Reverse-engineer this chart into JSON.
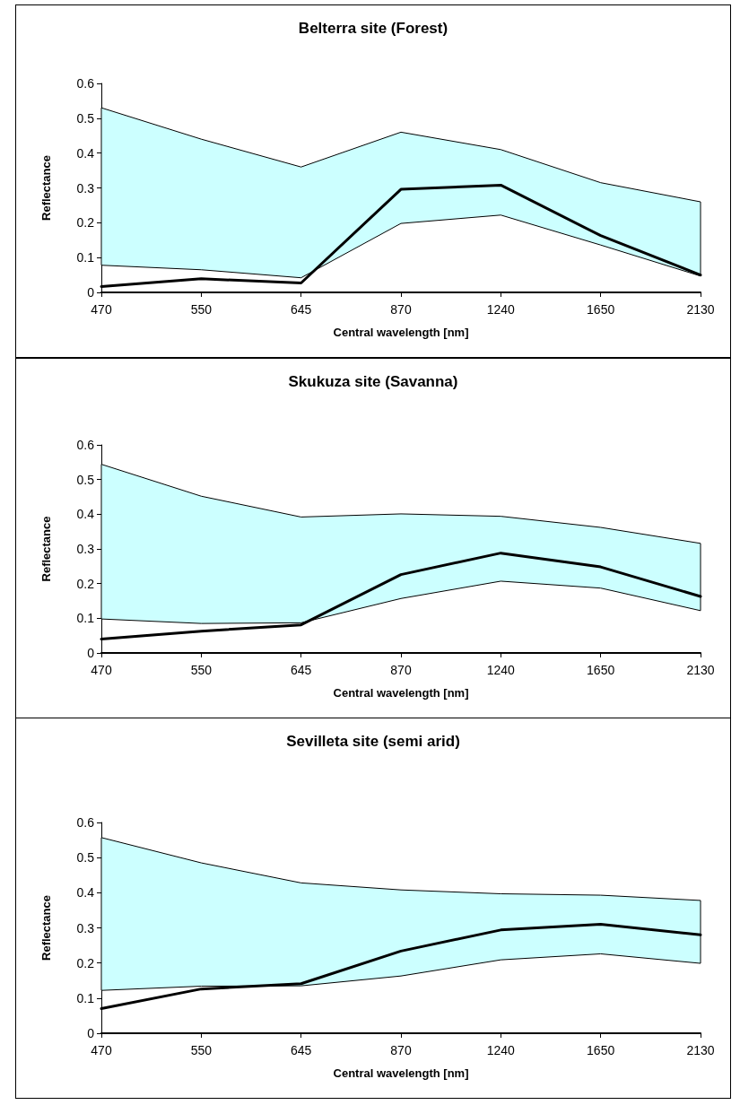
{
  "chart_data": [
    {
      "type": "line",
      "title": "Belterra site (Forest)",
      "xlabel": "Central wavelength [nm]",
      "ylabel": "Reflectance",
      "categories": [
        "470",
        "550",
        "645",
        "870",
        "1240",
        "1650",
        "2130"
      ],
      "ylim": [
        0,
        0.6
      ],
      "yticks": [
        0,
        0.1,
        0.2,
        0.3,
        0.4,
        0.5,
        0.6
      ],
      "marker": "none",
      "series": [
        {
          "color": "#000000",
          "values": [
            0.017,
            0.039,
            0.027,
            0.296,
            0.308,
            0.163,
            0.05
          ],
          "lower": [
            0.078,
            0.065,
            0.042,
            0.198,
            0.222,
            0.136,
            0.047
          ],
          "upper": [
            0.53,
            0.44,
            0.36,
            0.46,
            0.41,
            0.315,
            0.26
          ]
        }
      ]
    },
    {
      "type": "line",
      "title": "Skukuza site (Savanna)",
      "xlabel": "Central wavelength [nm]",
      "ylabel": "Reflectance",
      "categories": [
        "470",
        "550",
        "645",
        "870",
        "1240",
        "1650",
        "2130"
      ],
      "ylim": [
        0,
        0.6
      ],
      "yticks": [
        0,
        0.1,
        0.2,
        0.3,
        0.4,
        0.5,
        0.6
      ],
      "marker": "none",
      "series": [
        {
          "color": "#000000",
          "values": [
            0.04,
            0.063,
            0.081,
            0.226,
            0.288,
            0.248,
            0.163
          ],
          "lower": [
            0.098,
            0.085,
            0.087,
            0.157,
            0.207,
            0.187,
            0.122
          ],
          "upper": [
            0.544,
            0.452,
            0.392,
            0.401,
            0.394,
            0.362,
            0.316
          ]
        }
      ]
    },
    {
      "type": "line",
      "title": "Sevilleta site (semi arid)",
      "xlabel": "Central wavelength [nm]",
      "ylabel": "Reflectance",
      "categories": [
        "470",
        "550",
        "645",
        "870",
        "1240",
        "1650",
        "2130"
      ],
      "ylim": [
        0,
        0.6
      ],
      "yticks": [
        0,
        0.1,
        0.2,
        0.3,
        0.4,
        0.5,
        0.6
      ],
      "marker": "none",
      "series": [
        {
          "color": "#000000",
          "values": [
            0.07,
            0.126,
            0.141,
            0.234,
            0.294,
            0.31,
            0.28
          ],
          "lower": [
            0.122,
            0.134,
            0.135,
            0.163,
            0.209,
            0.226,
            0.199
          ],
          "upper": [
            0.557,
            0.485,
            0.428,
            0.408,
            0.397,
            0.393,
            0.378
          ]
        }
      ]
    }
  ]
}
